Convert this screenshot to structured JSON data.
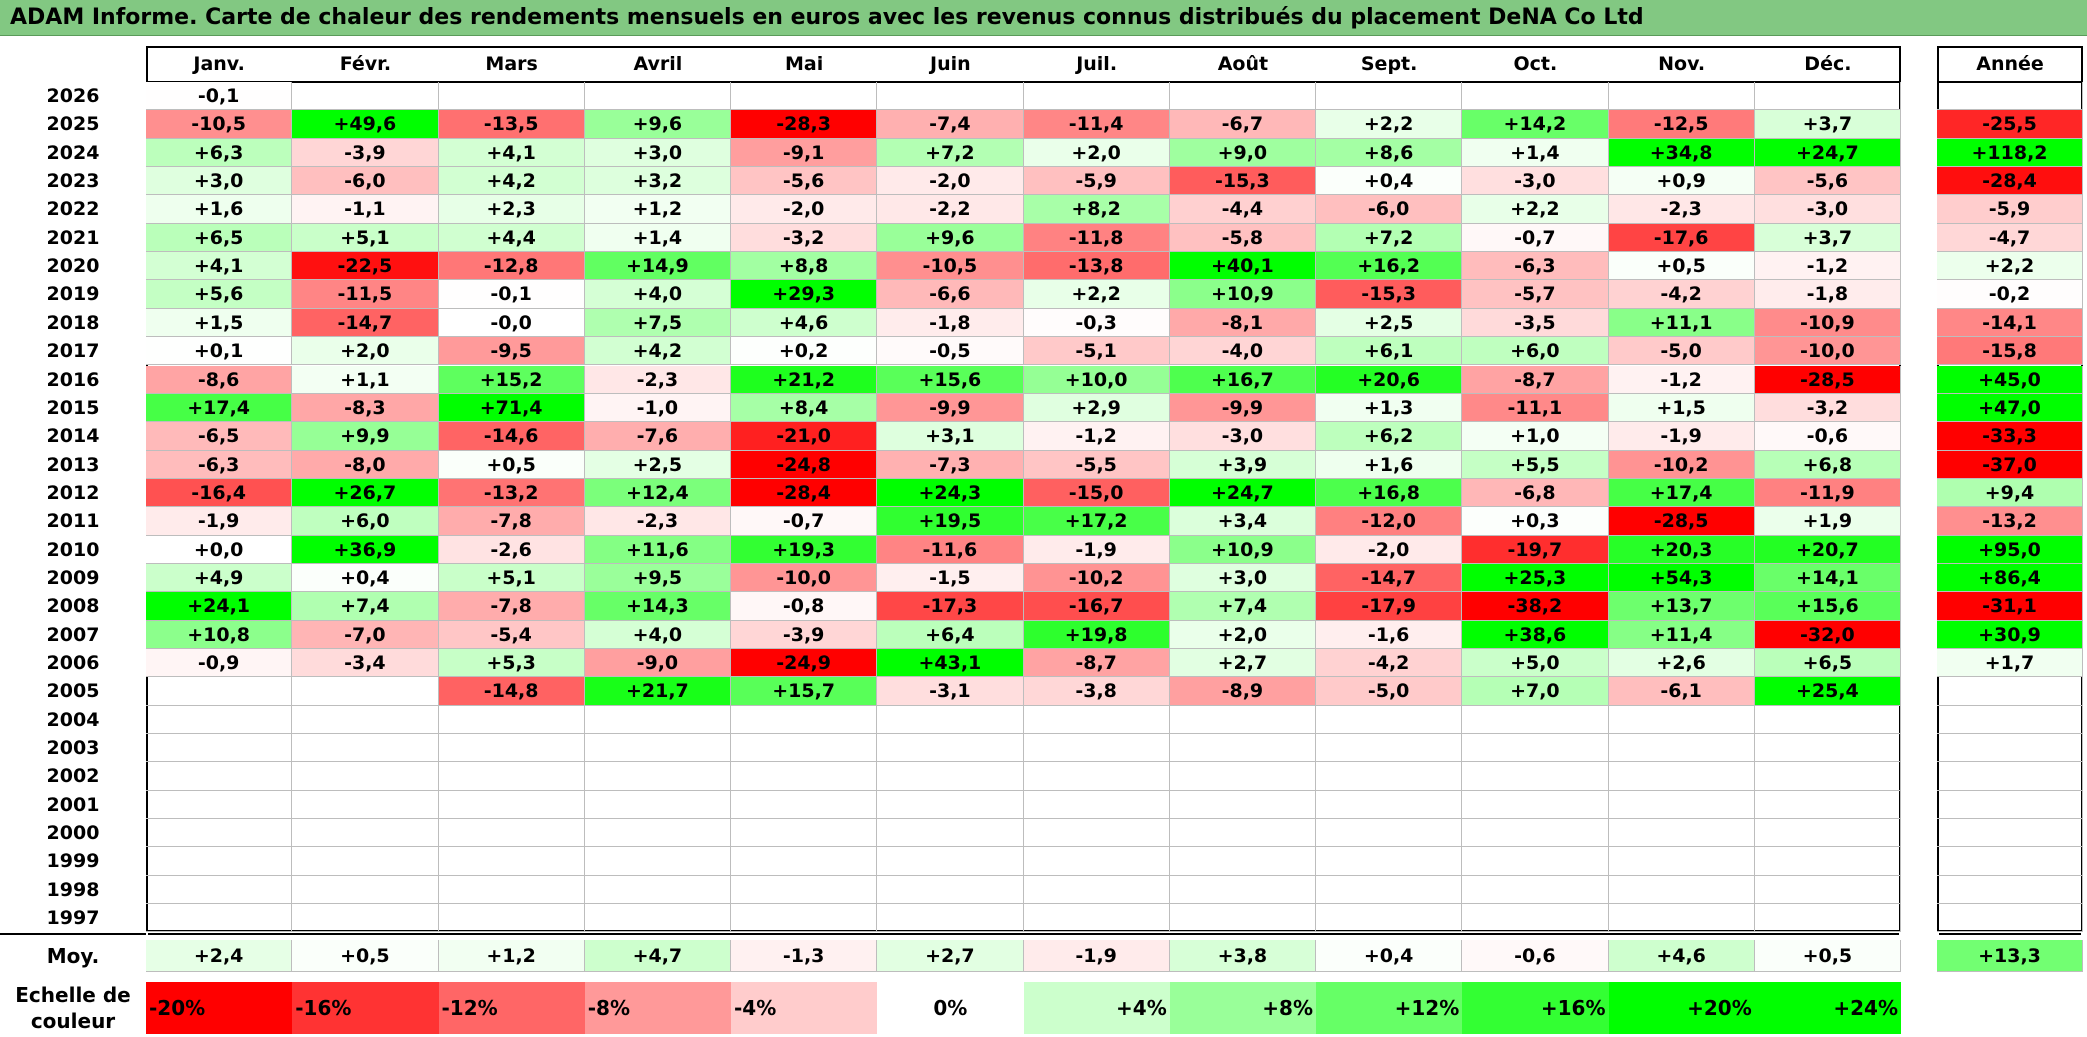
{
  "title": "ADAM Informe. Carte de chaleur des rendements mensuels en euros avec les revenus connus distribués du placement DeNA Co Ltd",
  "colors": {
    "title_bg": "#82c882",
    "neg_full": "#ff0000",
    "pos_full": "#00ff00",
    "zero": "#ffffff"
  },
  "chart_data": {
    "type": "heatmap",
    "months": [
      "Janv.",
      "Févr.",
      "Mars",
      "Avril",
      "Mai",
      "Juin",
      "Juil.",
      "Août",
      "Sept.",
      "Oct.",
      "Nov.",
      "Déc."
    ],
    "year_header": "Année",
    "rows": [
      {
        "year": "2026",
        "months": [
          "-0,1",
          "",
          "",
          "",
          "",
          "",
          "",
          "",
          "",
          "",
          "",
          ""
        ],
        "annual": ""
      },
      {
        "year": "2025",
        "months": [
          "-10,5",
          "+49,6",
          "-13,5",
          "+9,6",
          "-28,3",
          "-7,4",
          "-11,4",
          "-6,7",
          "+2,2",
          "+14,2",
          "-12,5",
          "+3,7"
        ],
        "annual": "-25,5"
      },
      {
        "year": "2024",
        "months": [
          "+6,3",
          "-3,9",
          "+4,1",
          "+3,0",
          "-9,1",
          "+7,2",
          "+2,0",
          "+9,0",
          "+8,6",
          "+1,4",
          "+34,8",
          "+24,7"
        ],
        "annual": "+118,2"
      },
      {
        "year": "2023",
        "months": [
          "+3,0",
          "-6,0",
          "+4,2",
          "+3,2",
          "-5,6",
          "-2,0",
          "-5,9",
          "-15,3",
          "+0,4",
          "-3,0",
          "+0,9",
          "-5,6"
        ],
        "annual": "-28,4"
      },
      {
        "year": "2022",
        "months": [
          "+1,6",
          "-1,1",
          "+2,3",
          "+1,2",
          "-2,0",
          "-2,2",
          "+8,2",
          "-4,4",
          "-6,0",
          "+2,2",
          "-2,3",
          "-3,0"
        ],
        "annual": "-5,9"
      },
      {
        "year": "2021",
        "months": [
          "+6,5",
          "+5,1",
          "+4,4",
          "+1,4",
          "-3,2",
          "+9,6",
          "-11,8",
          "-5,8",
          "+7,2",
          "-0,7",
          "-17,6",
          "+3,7"
        ],
        "annual": "-4,7"
      },
      {
        "year": "2020",
        "months": [
          "+4,1",
          "-22,5",
          "-12,8",
          "+14,9",
          "+8,8",
          "-10,5",
          "-13,8",
          "+40,1",
          "+16,2",
          "-6,3",
          "+0,5",
          "-1,2"
        ],
        "annual": "+2,2"
      },
      {
        "year": "2019",
        "months": [
          "+5,6",
          "-11,5",
          "-0,1",
          "+4,0",
          "+29,3",
          "-6,6",
          "+2,2",
          "+10,9",
          "-15,3",
          "-5,7",
          "-4,2",
          "-1,8"
        ],
        "annual": "-0,2"
      },
      {
        "year": "2018",
        "months": [
          "+1,5",
          "-14,7",
          "-0,0",
          "+7,5",
          "+4,6",
          "-1,8",
          "-0,3",
          "-8,1",
          "+2,5",
          "-3,5",
          "+11,1",
          "-10,9"
        ],
        "annual": "-14,1"
      },
      {
        "year": "2017",
        "months": [
          "+0,1",
          "+2,0",
          "-9,5",
          "+4,2",
          "+0,2",
          "-0,5",
          "-5,1",
          "-4,0",
          "+6,1",
          "+6,0",
          "-5,0",
          "-10,0"
        ],
        "annual": "-15,8"
      },
      {
        "year": "2016",
        "months": [
          "-8,6",
          "+1,1",
          "+15,2",
          "-2,3",
          "+21,2",
          "+15,6",
          "+10,0",
          "+16,7",
          "+20,6",
          "-8,7",
          "-1,2",
          "-28,5"
        ],
        "annual": "+45,0"
      },
      {
        "year": "2015",
        "months": [
          "+17,4",
          "-8,3",
          "+71,4",
          "-1,0",
          "+8,4",
          "-9,9",
          "+2,9",
          "-9,9",
          "+1,3",
          "-11,1",
          "+1,5",
          "-3,2"
        ],
        "annual": "+47,0"
      },
      {
        "year": "2014",
        "months": [
          "-6,5",
          "+9,9",
          "-14,6",
          "-7,6",
          "-21,0",
          "+3,1",
          "-1,2",
          "-3,0",
          "+6,2",
          "+1,0",
          "-1,9",
          "-0,6"
        ],
        "annual": "-33,3"
      },
      {
        "year": "2013",
        "months": [
          "-6,3",
          "-8,0",
          "+0,5",
          "+2,5",
          "-24,8",
          "-7,3",
          "-5,5",
          "+3,9",
          "+1,6",
          "+5,5",
          "-10,2",
          "+6,8"
        ],
        "annual": "-37,0"
      },
      {
        "year": "2012",
        "months": [
          "-16,4",
          "+26,7",
          "-13,2",
          "+12,4",
          "-28,4",
          "+24,3",
          "-15,0",
          "+24,7",
          "+16,8",
          "-6,8",
          "+17,4",
          "-11,9"
        ],
        "annual": "+9,4"
      },
      {
        "year": "2011",
        "months": [
          "-1,9",
          "+6,0",
          "-7,8",
          "-2,3",
          "-0,7",
          "+19,5",
          "+17,2",
          "+3,4",
          "-12,0",
          "+0,3",
          "-28,5",
          "+1,9"
        ],
        "annual": "-13,2"
      },
      {
        "year": "2010",
        "months": [
          "+0,0",
          "+36,9",
          "-2,6",
          "+11,6",
          "+19,3",
          "-11,6",
          "-1,9",
          "+10,9",
          "-2,0",
          "-19,7",
          "+20,3",
          "+20,7"
        ],
        "annual": "+95,0"
      },
      {
        "year": "2009",
        "months": [
          "+4,9",
          "+0,4",
          "+5,1",
          "+9,5",
          "-10,0",
          "-1,5",
          "-10,2",
          "+3,0",
          "-14,7",
          "+25,3",
          "+54,3",
          "+14,1"
        ],
        "annual": "+86,4"
      },
      {
        "year": "2008",
        "months": [
          "+24,1",
          "+7,4",
          "-7,8",
          "+14,3",
          "-0,8",
          "-17,3",
          "-16,7",
          "+7,4",
          "-17,9",
          "-38,2",
          "+13,7",
          "+15,6"
        ],
        "annual": "-31,1"
      },
      {
        "year": "2007",
        "months": [
          "+10,8",
          "-7,0",
          "-5,4",
          "+4,0",
          "-3,9",
          "+6,4",
          "+19,8",
          "+2,0",
          "-1,6",
          "+38,6",
          "+11,4",
          "-32,0"
        ],
        "annual": "+30,9"
      },
      {
        "year": "2006",
        "months": [
          "-0,9",
          "-3,4",
          "+5,3",
          "-9,0",
          "-24,9",
          "+43,1",
          "-8,7",
          "+2,7",
          "-4,2",
          "+5,0",
          "+2,6",
          "+6,5"
        ],
        "annual": "+1,7"
      },
      {
        "year": "2005",
        "months": [
          "",
          "",
          "-14,8",
          "+21,7",
          "+15,7",
          "-3,1",
          "-3,8",
          "-8,9",
          "-5,0",
          "+7,0",
          "-6,1",
          "+25,4"
        ],
        "annual": ""
      },
      {
        "year": "2004",
        "months": [
          "",
          "",
          "",
          "",
          "",
          "",
          "",
          "",
          "",
          "",
          "",
          ""
        ],
        "annual": ""
      },
      {
        "year": "2003",
        "months": [
          "",
          "",
          "",
          "",
          "",
          "",
          "",
          "",
          "",
          "",
          "",
          ""
        ],
        "annual": ""
      },
      {
        "year": "2002",
        "months": [
          "",
          "",
          "",
          "",
          "",
          "",
          "",
          "",
          "",
          "",
          "",
          ""
        ],
        "annual": ""
      },
      {
        "year": "2001",
        "months": [
          "",
          "",
          "",
          "",
          "",
          "",
          "",
          "",
          "",
          "",
          "",
          ""
        ],
        "annual": ""
      },
      {
        "year": "2000",
        "months": [
          "",
          "",
          "",
          "",
          "",
          "",
          "",
          "",
          "",
          "",
          "",
          ""
        ],
        "annual": ""
      },
      {
        "year": "1999",
        "months": [
          "",
          "",
          "",
          "",
          "",
          "",
          "",
          "",
          "",
          "",
          "",
          ""
        ],
        "annual": ""
      },
      {
        "year": "1998",
        "months": [
          "",
          "",
          "",
          "",
          "",
          "",
          "",
          "",
          "",
          "",
          "",
          ""
        ],
        "annual": ""
      },
      {
        "year": "1997",
        "months": [
          "",
          "",
          "",
          "",
          "",
          "",
          "",
          "",
          "",
          "",
          "",
          ""
        ],
        "annual": ""
      }
    ],
    "average": {
      "label": "Moy.",
      "months": [
        "+2,4",
        "+0,5",
        "+1,2",
        "+4,7",
        "-1,3",
        "+2,7",
        "-1,9",
        "+3,8",
        "+0,4",
        "-0,6",
        "+4,6",
        "+0,5"
      ],
      "annual": "+13,3"
    },
    "color_scale": {
      "label_lines": [
        "Echelle de",
        "couleur"
      ],
      "stops": [
        "-20%",
        "-16%",
        "-12%",
        "-8%",
        "-4%",
        "0%",
        "+4%",
        "+8%",
        "+12%",
        "+16%",
        "+20%",
        "+24%"
      ]
    }
  }
}
